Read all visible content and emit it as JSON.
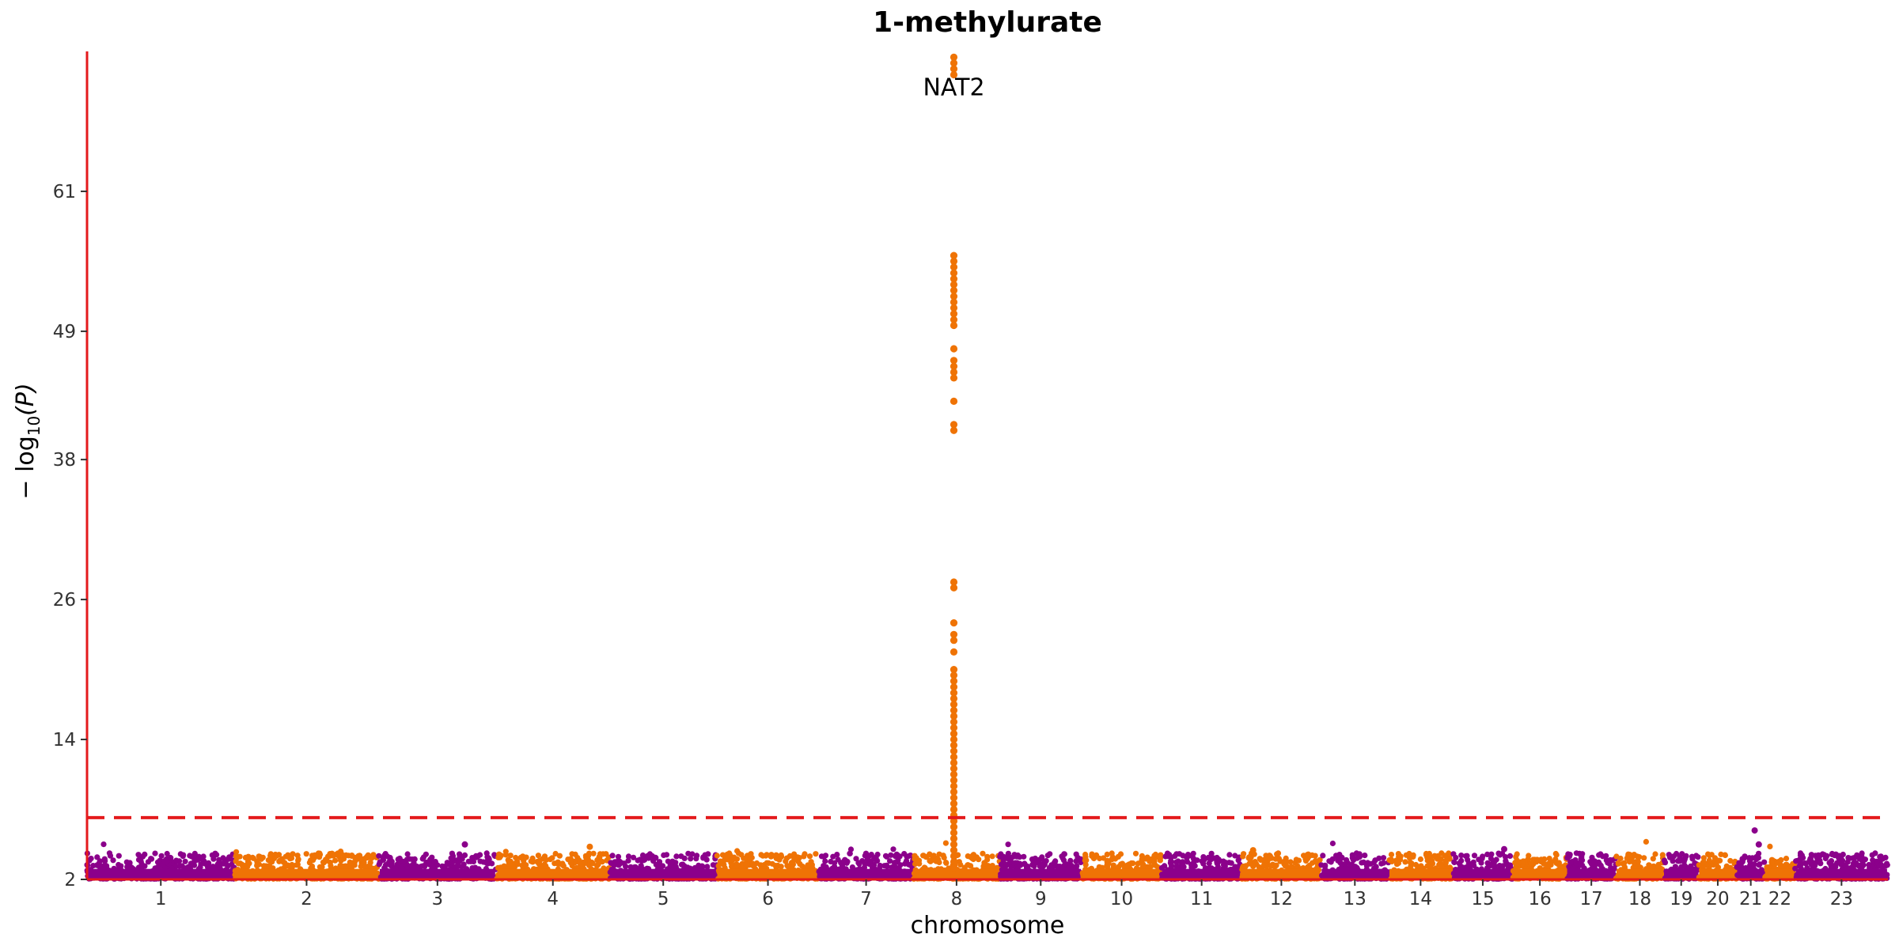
{
  "chart_data": {
    "type": "scatter",
    "subtype": "manhattan",
    "title": "1-methylurate",
    "xlabel": "chromosome",
    "ylabel_prefix": "− log",
    "ylabel_sub": "10",
    "ylabel_suffix": "(P)",
    "ylim": [
      2,
      73
    ],
    "yticks": [
      2,
      14,
      26,
      38,
      49,
      61
    ],
    "significance_threshold": 7.3,
    "colors": {
      "odd": "#8b008b",
      "even": "#ef7305",
      "axis": "#e41a1c",
      "threshold": "#e41a1c"
    },
    "chromosomes": [
      {
        "label": "1",
        "start": 0,
        "end": 248
      },
      {
        "label": "2",
        "start": 248,
        "end": 490
      },
      {
        "label": "3",
        "start": 490,
        "end": 688
      },
      {
        "label": "4",
        "start": 688,
        "end": 878
      },
      {
        "label": "5",
        "start": 878,
        "end": 1059
      },
      {
        "label": "6",
        "start": 1059,
        "end": 1230
      },
      {
        "label": "7",
        "start": 1230,
        "end": 1389
      },
      {
        "label": "8",
        "start": 1389,
        "end": 1534
      },
      {
        "label": "9",
        "start": 1534,
        "end": 1672
      },
      {
        "label": "10",
        "start": 1672,
        "end": 1806
      },
      {
        "label": "11",
        "start": 1806,
        "end": 1941
      },
      {
        "label": "12",
        "start": 1941,
        "end": 2074
      },
      {
        "label": "13",
        "start": 2074,
        "end": 2188
      },
      {
        "label": "14",
        "start": 2188,
        "end": 2295
      },
      {
        "label": "15",
        "start": 2295,
        "end": 2397
      },
      {
        "label": "16",
        "start": 2397,
        "end": 2487
      },
      {
        "label": "17",
        "start": 2487,
        "end": 2570
      },
      {
        "label": "18",
        "start": 2570,
        "end": 2650
      },
      {
        "label": "19",
        "start": 2650,
        "end": 2709
      },
      {
        "label": "20",
        "start": 2709,
        "end": 2773
      },
      {
        "label": "21",
        "start": 2773,
        "end": 2820
      },
      {
        "label": "22",
        "start": 2820,
        "end": 2871
      },
      {
        "label": "23",
        "start": 2871,
        "end": 3027
      }
    ],
    "peak": {
      "chromosome": "8",
      "position": 1457,
      "values": [
        72.5,
        72,
        71.5,
        71,
        55.5,
        55,
        54.5,
        54,
        53.5,
        53,
        52.5,
        52,
        51.5,
        51,
        50.5,
        50,
        49.5,
        47.5,
        46.5,
        46,
        45.5,
        45,
        43,
        41,
        40.5,
        27.5,
        27,
        24,
        23,
        22.5,
        21.5,
        20,
        19.5,
        19,
        18.5,
        18,
        17.5,
        17,
        16.5,
        16,
        15.5,
        15,
        14.5,
        14,
        13.5,
        13,
        12.5,
        12,
        11.5,
        11,
        10.5,
        10,
        9.5,
        9,
        8.5,
        8,
        7.5,
        7,
        6.5,
        6,
        5.5,
        5,
        4.5,
        4,
        3.5,
        3
      ]
    },
    "annotations": [
      {
        "text": "NAT2",
        "x": 1457,
        "y": 71
      }
    ],
    "notable_points": [
      {
        "chromosome": "3",
        "x": 635,
        "y": 5.0
      },
      {
        "chromosome": "4",
        "x": 845,
        "y": 4.8
      },
      {
        "chromosome": "12",
        "x": 1960,
        "y": 4.5
      },
      {
        "chromosome": "15",
        "x": 2382,
        "y": 4.6
      },
      {
        "chromosome": "21",
        "x": 2803,
        "y": 6.2
      },
      {
        "chromosome": "21",
        "x": 2810,
        "y": 5.0
      }
    ]
  }
}
